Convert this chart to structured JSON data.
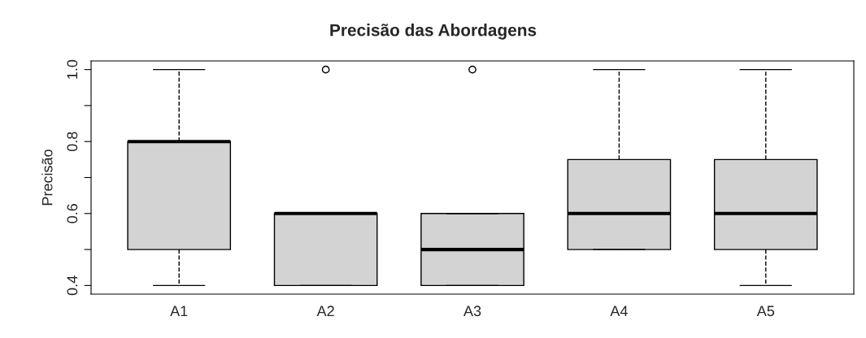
{
  "chart_data": {
    "type": "box",
    "title": "Precisão das Abordagens",
    "ylabel": "Precisão",
    "categories": [
      "A1",
      "A2",
      "A3",
      "A4",
      "A5"
    ],
    "boxes": [
      {
        "low": 0.4,
        "q1": 0.5,
        "median": 0.8,
        "q3": 0.8,
        "high": 1.0
      },
      {
        "low": 0.4,
        "q1": 0.4,
        "median": 0.6,
        "q3": 0.6,
        "high": 0.6,
        "outliers": [
          1.0
        ]
      },
      {
        "low": 0.4,
        "q1": 0.4,
        "median": 0.5,
        "q3": 0.6,
        "high": 0.6,
        "outliers": [
          1.0
        ]
      },
      {
        "low": 0.5,
        "q1": 0.5,
        "median": 0.6,
        "q3": 0.75,
        "high": 1.0
      },
      {
        "low": 0.4,
        "q1": 0.5,
        "median": 0.6,
        "q3": 0.75,
        "high": 1.0
      }
    ],
    "color": "#d3d3d3",
    "ylim": [
      0.376,
      1.024
    ],
    "yticks": [
      0.4,
      0.6,
      0.8,
      {
        "value": 1,
        "label": "1.0"
      },
      {
        "value": 0.5,
        "label": null
      },
      {
        "value": 0.7,
        "label": null
      },
      {
        "value": 0.9,
        "label": null
      }
    ],
    "grid": false
  }
}
